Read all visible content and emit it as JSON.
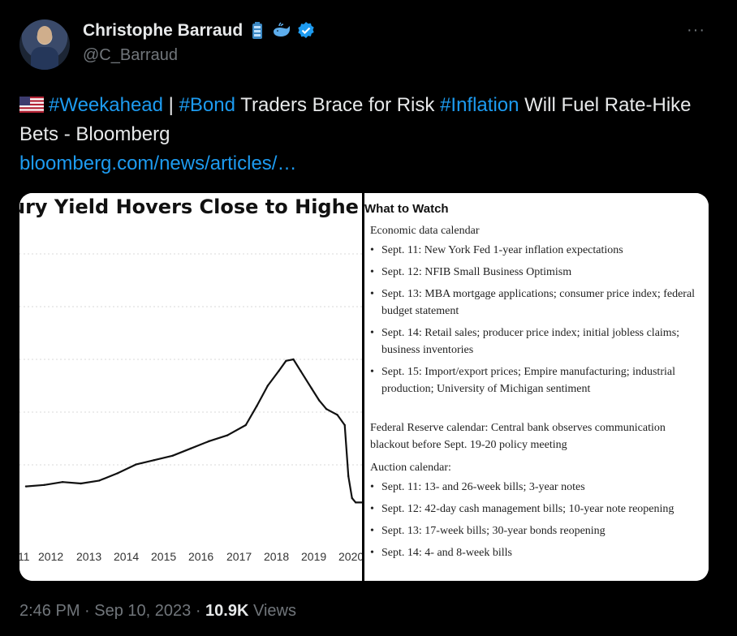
{
  "author": {
    "name": "Christophe Barraud",
    "handle": "@C_Barraud"
  },
  "menu": {
    "more_label": "···"
  },
  "tweet": {
    "parts": [
      {
        "text": "#Weekahead",
        "type": "hashtag"
      },
      {
        "text": " | ",
        "type": "text"
      },
      {
        "text": "#Bond",
        "type": "hashtag"
      },
      {
        "text": " Traders Brace for Risk ",
        "type": "text"
      },
      {
        "text": "#Inflation",
        "type": "hashtag"
      },
      {
        "text": " Will Fuel Rate-Hike Bets - Bloomberg",
        "type": "text"
      }
    ],
    "link": "bloomberg.com/news/articles/…"
  },
  "media": {
    "chart_title": "ury Yield Hovers Close to Highe",
    "chart_data": {
      "type": "line",
      "title": "ury Yield Hovers Close to Highe",
      "x_tick_labels": [
        "11",
        "2012",
        "2013",
        "2014",
        "2015",
        "2016",
        "2017",
        "2018",
        "2019",
        "2020"
      ],
      "x": [
        2011.0,
        2011.5,
        2012.0,
        2012.5,
        2013.0,
        2013.5,
        2014.0,
        2014.5,
        2015.0,
        2015.5,
        2016.0,
        2016.5,
        2017.0,
        2017.3,
        2017.6,
        2017.9,
        2018.1,
        2018.3,
        2018.5,
        2018.8,
        2019.0,
        2019.2,
        2019.5,
        2019.7,
        2019.8,
        2019.9,
        2020.0,
        2020.3
      ],
      "y": [
        0.13,
        0.14,
        0.16,
        0.15,
        0.17,
        0.22,
        0.28,
        0.31,
        0.34,
        0.39,
        0.44,
        0.48,
        0.55,
        0.68,
        0.82,
        0.92,
        0.99,
        1.0,
        0.92,
        0.8,
        0.72,
        0.66,
        0.62,
        0.55,
        0.2,
        0.05,
        0.02,
        0.02
      ]
    },
    "what_to_watch": {
      "title": "What to Watch",
      "economic_heading": "Economic data calendar",
      "economic_items": [
        "Sept. 11: New York Fed 1-year inflation expectations",
        "Sept. 12: NFIB Small Business Optimism",
        "Sept. 13: MBA mortgage applications; consumer price index; federal budget statement",
        "Sept. 14: Retail sales; producer price index; initial jobless claims; business inventories",
        "Sept. 15: Import/export prices; Empire manufacturing; industrial production; University of Michigan sentiment"
      ],
      "fed_text": "Federal Reserve calendar: Central bank observes communication blackout before Sept. 19-20 policy meeting",
      "auction_heading": "Auction calendar:",
      "auction_items": [
        "Sept. 11: 13- and 26-week bills; 3-year notes",
        "Sept. 12: 42-day cash management bills; 10-year note reopening",
        "Sept. 13: 17-week bills; 30-year bonds reopening",
        "Sept. 14: 4- and 8-week bills"
      ]
    }
  },
  "footer": {
    "time": "2:46 PM",
    "sep1": " · ",
    "date": "Sep 10, 2023",
    "sep2": " · ",
    "views_count": "10.9K",
    "views_label": " Views"
  },
  "colors": {
    "link": "#1d9bf0",
    "muted": "#71767b",
    "text": "#e7e9ea",
    "verified": "#1d9bf0"
  }
}
